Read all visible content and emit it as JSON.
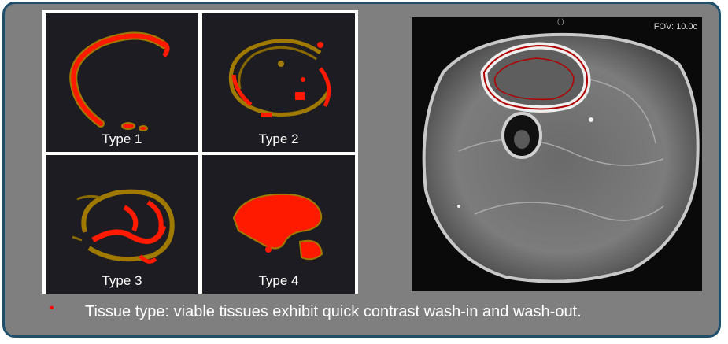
{
  "panels": [
    {
      "label": "Type 1"
    },
    {
      "label": "Type 2"
    },
    {
      "label": "Type 3"
    },
    {
      "label": "Type 4"
    }
  ],
  "mri": {
    "fov_text": "FOV: 10.0c",
    "top_text": "( )"
  },
  "bullet": {
    "marker": "•",
    "text": "Tissue type: viable tissues exhibit quick contrast wash-in and wash-out."
  },
  "colors": {
    "frame": "#1f4f6a",
    "background": "#7f7f7f",
    "red": "#ff0000",
    "olive": "#a07a00"
  }
}
